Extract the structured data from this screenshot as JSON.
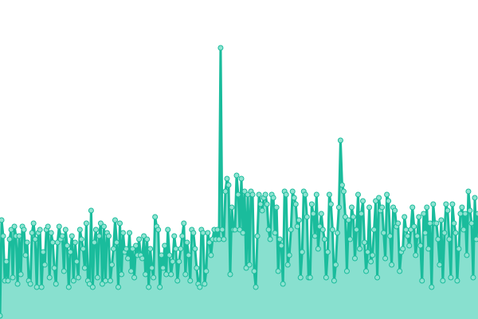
{
  "chart_data": {
    "type": "area",
    "title": "",
    "xlabel": "",
    "ylabel": "",
    "ylim": [
      0,
      100
    ],
    "grid": false,
    "legend": "none",
    "colors": {
      "line": "#1abc9c",
      "fill": "#88e0cf",
      "marker_fill": "#8fe3d1"
    },
    "values": [
      1,
      31,
      26,
      12,
      18,
      12,
      25,
      28,
      13,
      29,
      26,
      11,
      26,
      14,
      29,
      28,
      20,
      24,
      12,
      11,
      27,
      30,
      25,
      10,
      27,
      28,
      10,
      21,
      17,
      28,
      29,
      13,
      27,
      24,
      16,
      11,
      24,
      29,
      25,
      26,
      15,
      28,
      23,
      10,
      21,
      26,
      12,
      24,
      18,
      13,
      28,
      25,
      22,
      16,
      30,
      12,
      11,
      34,
      10,
      24,
      28,
      13,
      26,
      30,
      11,
      29,
      12,
      27,
      26,
      12,
      17,
      22,
      31,
      24,
      10,
      30,
      14,
      27,
      21,
      22,
      19,
      27,
      15,
      22,
      13,
      23,
      20,
      25,
      20,
      19,
      26,
      14,
      25,
      10,
      22,
      16,
      13,
      32,
      29,
      28,
      10,
      20,
      16,
      23,
      14,
      28,
      20,
      14,
      18,
      26,
      22,
      12,
      18,
      22,
      26,
      30,
      14,
      24,
      20,
      12,
      28,
      27,
      22,
      16,
      11,
      10,
      28,
      27,
      11,
      15,
      27,
      24,
      20,
      25,
      28,
      25,
      28,
      25,
      85,
      28,
      25,
      40,
      44,
      42,
      14,
      35,
      28,
      28,
      45,
      39,
      28,
      44,
      27,
      40,
      16,
      39,
      17,
      40,
      39,
      15,
      10,
      26,
      39,
      36,
      34,
      38,
      39,
      36,
      28,
      25,
      39,
      38,
      27,
      35,
      15,
      25,
      23,
      11,
      40,
      39,
      17,
      20,
      28,
      40,
      38,
      36,
      29,
      31,
      13,
      21,
      40,
      39,
      32,
      13,
      13,
      36,
      33,
      26,
      39,
      22,
      29,
      33,
      28,
      25,
      13,
      21,
      39,
      36,
      28,
      12,
      17,
      27,
      35,
      56,
      42,
      40,
      32,
      15,
      31,
      25,
      35,
      32,
      19,
      28,
      39,
      22,
      33,
      37,
      24,
      15,
      21,
      35,
      18,
      20,
      28,
      37,
      13,
      38,
      34,
      35,
      27,
      19,
      39,
      37,
      26,
      17,
      35,
      34,
      29,
      30,
      15,
      21,
      22,
      32,
      28,
      26,
      23,
      28,
      35,
      29,
      20,
      26,
      32,
      23,
      12,
      33,
      27,
      35,
      22,
      30,
      10,
      36,
      30,
      30,
      25,
      17,
      31,
      12,
      27,
      36,
      34,
      25,
      13,
      36,
      30,
      27,
      12,
      22,
      33,
      35,
      28,
      33,
      20,
      40,
      34,
      30,
      13,
      38,
      25,
      33
    ]
  }
}
